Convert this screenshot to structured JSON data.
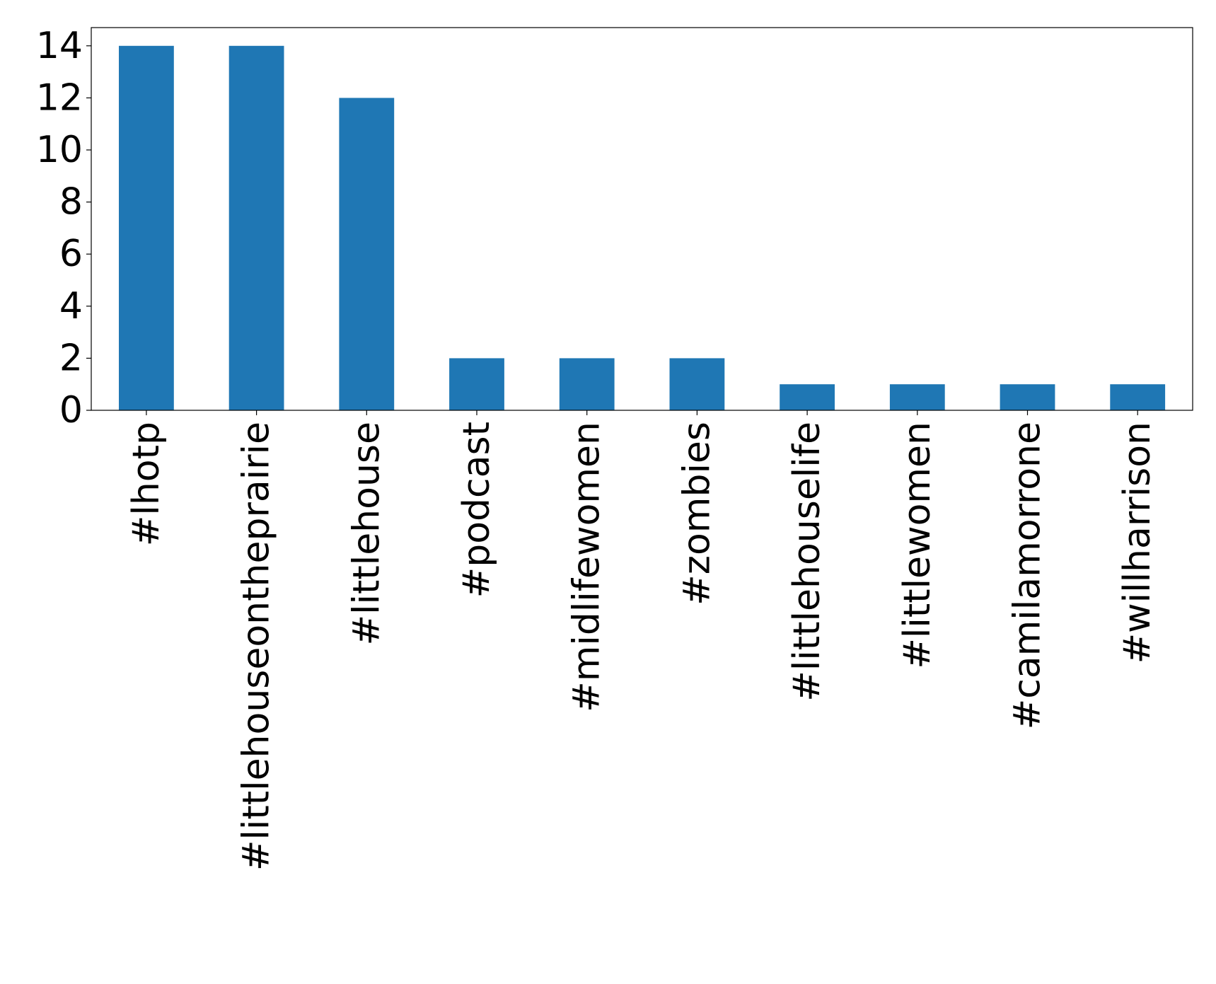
{
  "chart_data": {
    "type": "bar",
    "title": "",
    "xlabel": "",
    "ylabel": "",
    "categories": [
      "#lhotp",
      "#littlehouseontheprairie",
      "#littlehouse",
      "#podcast",
      "#midlifewomen",
      "#zombies",
      "#littlehouselife",
      "#littlewomen",
      "#camilamorrone",
      "#willharrison"
    ],
    "values": [
      14,
      14,
      12,
      2,
      2,
      2,
      1,
      1,
      1,
      1
    ],
    "ylim": [
      0,
      14.7
    ],
    "yticks": [
      0,
      2,
      4,
      6,
      8,
      10,
      12,
      14
    ],
    "bar_color": "#1f77b4",
    "grid": false,
    "legend": "none"
  }
}
